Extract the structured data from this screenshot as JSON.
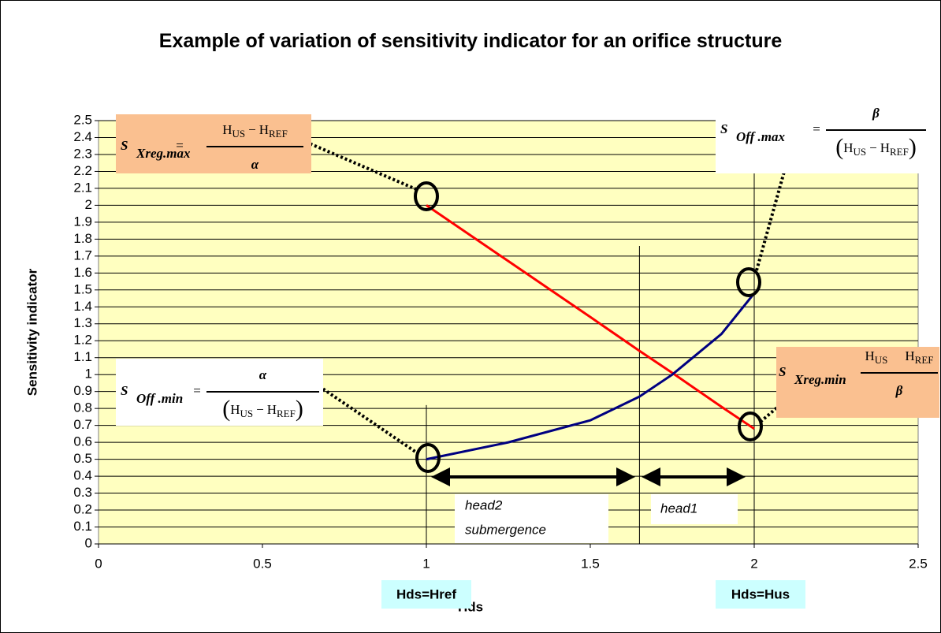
{
  "chart_data": {
    "type": "line",
    "title": "Example of variation of sensitivity indicator for an orifice structure",
    "x_label": "Hds",
    "y_label": "Sensitivity indicator",
    "x": [
      1,
      1.25,
      1.5,
      1.65,
      1.75,
      1.9,
      2
    ],
    "series": [
      {
        "name": "S Xreg",
        "color": "#ff0000",
        "values": [
          2.0,
          1.67,
          1.34,
          1.14,
          1.01,
          0.81,
          0.68
        ]
      },
      {
        "name": "S Off",
        "color": "#000080",
        "values": [
          0.5,
          0.6,
          0.73,
          0.87,
          1.0,
          1.24,
          1.48
        ]
      }
    ],
    "xlim": [
      0,
      2.5
    ],
    "xticks": [
      0,
      0.5,
      1,
      1.5,
      2,
      2.5
    ],
    "ylim": [
      0,
      2.5
    ],
    "yticks": [
      0,
      0.1,
      0.2,
      0.3,
      0.4,
      0.5,
      0.6,
      0.7,
      0.8,
      0.9,
      1,
      1.1,
      1.2,
      1.3,
      1.4,
      1.5,
      1.6,
      1.7,
      1.8,
      1.9,
      2,
      2.1,
      2.2,
      2.3,
      2.4,
      2.5
    ],
    "grid": true,
    "annotations": {
      "head2": [
        "head2",
        "submergence"
      ],
      "head1": "head1",
      "href": "Hds=Href",
      "hus": "Hds=Hus"
    },
    "formulas": [
      {
        "symbol": "S",
        "subscript": "Xreg.max",
        "equals": "=",
        "numerator": {
          "H1": "H",
          "sub1": "US",
          "op": "−",
          "H2": "H",
          "sub2": "REF"
        },
        "denominator": "α"
      },
      {
        "symbol": "S",
        "subscript": "Off .max",
        "equals": "=",
        "numerator": "β",
        "denominator": {
          "open": "(",
          "H1": "H",
          "sub1": "US",
          "op": "−",
          "H2": "H",
          "sub2": "REF",
          "close": ")"
        }
      },
      {
        "symbol": "S",
        "subscript": "Off .min",
        "equals": "=",
        "numerator": "α",
        "denominator": {
          "open": "(",
          "H1": "H",
          "sub1": "US",
          "op": "−",
          "H2": "H",
          "sub2": "REF",
          "close": ")"
        }
      },
      {
        "symbol": "S",
        "subscript": "Xreg.min",
        "numerator": {
          "H1": "H",
          "sub1": "US",
          "H2": "H",
          "sub2": "REF"
        },
        "denominator": "β"
      }
    ]
  }
}
